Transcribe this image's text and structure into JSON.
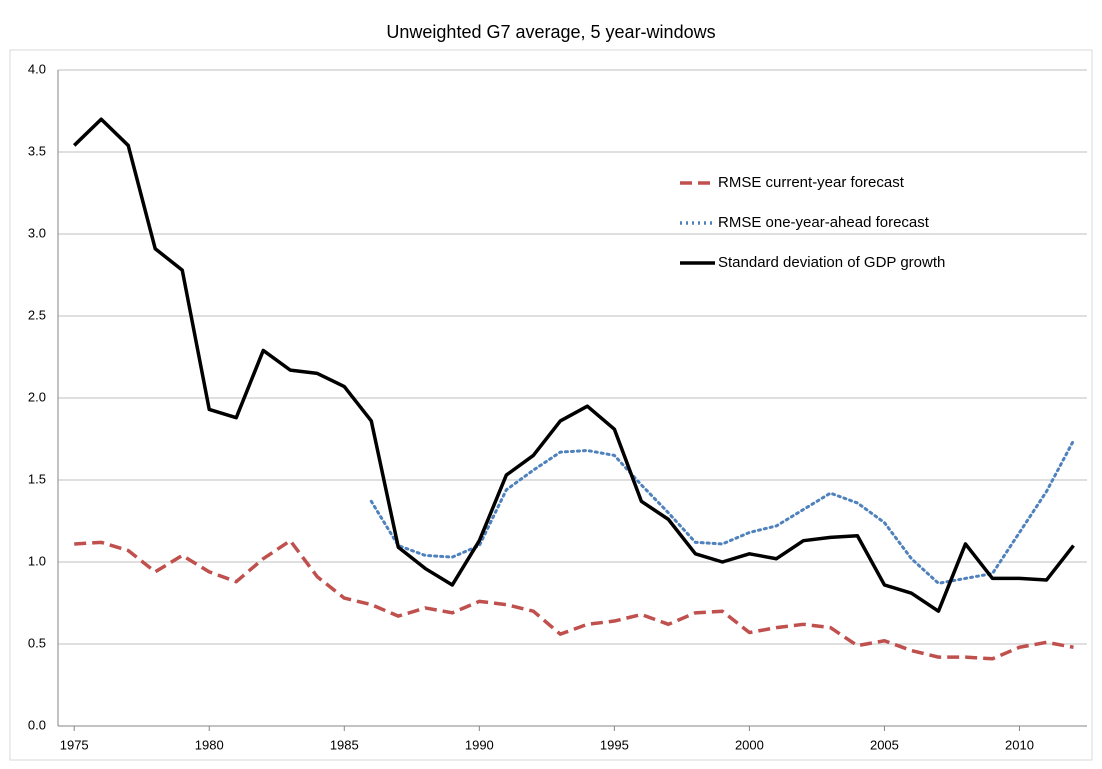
{
  "chart_data": {
    "type": "line",
    "title": "Unweighted G7 average, 5 year-windows",
    "x": [
      1975,
      1976,
      1977,
      1978,
      1979,
      1980,
      1981,
      1982,
      1983,
      1984,
      1985,
      1986,
      1987,
      1988,
      1989,
      1990,
      1991,
      1992,
      1993,
      1994,
      1995,
      1996,
      1997,
      1998,
      1999,
      2000,
      2001,
      2002,
      2003,
      2004,
      2005,
      2006,
      2007,
      2008,
      2009,
      2010,
      2011,
      2012
    ],
    "series": [
      {
        "name": "RMSE current-year forecast",
        "color": "#c0504d",
        "dash": "dashed",
        "values": [
          1.11,
          1.12,
          1.07,
          0.94,
          1.04,
          0.94,
          0.88,
          1.02,
          1.13,
          0.91,
          0.78,
          0.74,
          0.67,
          0.72,
          0.69,
          0.76,
          0.74,
          0.7,
          0.56,
          0.62,
          0.64,
          0.68,
          0.62,
          0.69,
          0.7,
          0.57,
          0.6,
          0.62,
          0.6,
          0.49,
          0.52,
          0.46,
          0.42,
          0.42,
          0.41,
          0.48,
          0.51,
          0.48
        ]
      },
      {
        "name": "RMSE one-year-ahead forecast",
        "color": "#4f81bd",
        "dash": "dotted",
        "values": [
          null,
          null,
          null,
          null,
          null,
          null,
          null,
          null,
          null,
          null,
          null,
          1.37,
          1.1,
          1.04,
          1.03,
          1.1,
          1.44,
          1.56,
          1.67,
          1.68,
          1.65,
          1.47,
          1.3,
          1.12,
          1.11,
          1.18,
          1.22,
          1.32,
          1.42,
          1.36,
          1.24,
          1.02,
          0.87,
          0.9,
          0.93,
          1.18,
          1.43,
          1.74
        ]
      },
      {
        "name": "Standard deviation of GDP growth",
        "color": "#000000",
        "dash": "solid",
        "values": [
          3.54,
          3.7,
          3.54,
          2.91,
          2.78,
          1.93,
          1.88,
          2.29,
          2.17,
          2.15,
          2.07,
          1.86,
          1.09,
          0.96,
          0.86,
          1.13,
          1.53,
          1.65,
          1.86,
          1.95,
          1.81,
          1.37,
          1.26,
          1.05,
          1.0,
          1.05,
          1.02,
          1.13,
          1.15,
          1.16,
          0.86,
          0.81,
          0.7,
          1.11,
          0.9,
          0.9,
          0.89,
          1.1
        ]
      }
    ],
    "xlim": [
      1974.4,
      2012.5
    ],
    "xticks": [
      1975,
      1980,
      1985,
      1990,
      1995,
      2000,
      2005,
      2010
    ],
    "ylim": [
      0,
      4
    ],
    "yticks": [
      {
        "value": 0,
        "label": "0.0"
      },
      {
        "value": 0.5,
        "label": "0.5"
      },
      {
        "value": 1,
        "label": "1.0"
      },
      {
        "value": 1.5,
        "label": "1.5"
      },
      {
        "value": 2,
        "label": "2.0"
      },
      {
        "value": 2.5,
        "label": "2.5"
      },
      {
        "value": 3,
        "label": "3.0"
      },
      {
        "value": 3.5,
        "label": "3.5"
      },
      {
        "value": 4,
        "label": "4.0"
      }
    ],
    "grid": true,
    "legend": "upper right"
  }
}
